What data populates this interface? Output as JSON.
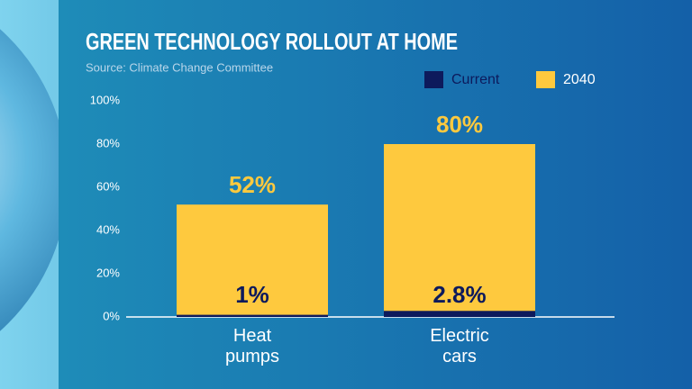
{
  "chart_data": {
    "type": "bar",
    "title": "GREEN TECHNOLOGY ROLLOUT AT HOME",
    "subtitle": "Source: Climate Change Committee",
    "categories": [
      "Heat pumps",
      "Electric cars"
    ],
    "series": [
      {
        "name": "Current",
        "color": "#0d1a5c",
        "values": [
          1,
          2.8
        ],
        "value_labels": [
          "1%",
          "2.8%"
        ]
      },
      {
        "name": "2040",
        "color": "#fec93e",
        "values": [
          52,
          80
        ],
        "value_labels": [
          "52%",
          "80%"
        ]
      }
    ],
    "ylim": [
      0,
      100
    ],
    "yticks": [
      {
        "value": 0,
        "label": "0%"
      },
      {
        "value": 20,
        "label": "20%"
      },
      {
        "value": 40,
        "label": "40%"
      },
      {
        "value": 60,
        "label": "60%"
      },
      {
        "value": 80,
        "label": "80%"
      },
      {
        "value": 100,
        "label": "100%"
      }
    ],
    "legend": "top-right"
  }
}
